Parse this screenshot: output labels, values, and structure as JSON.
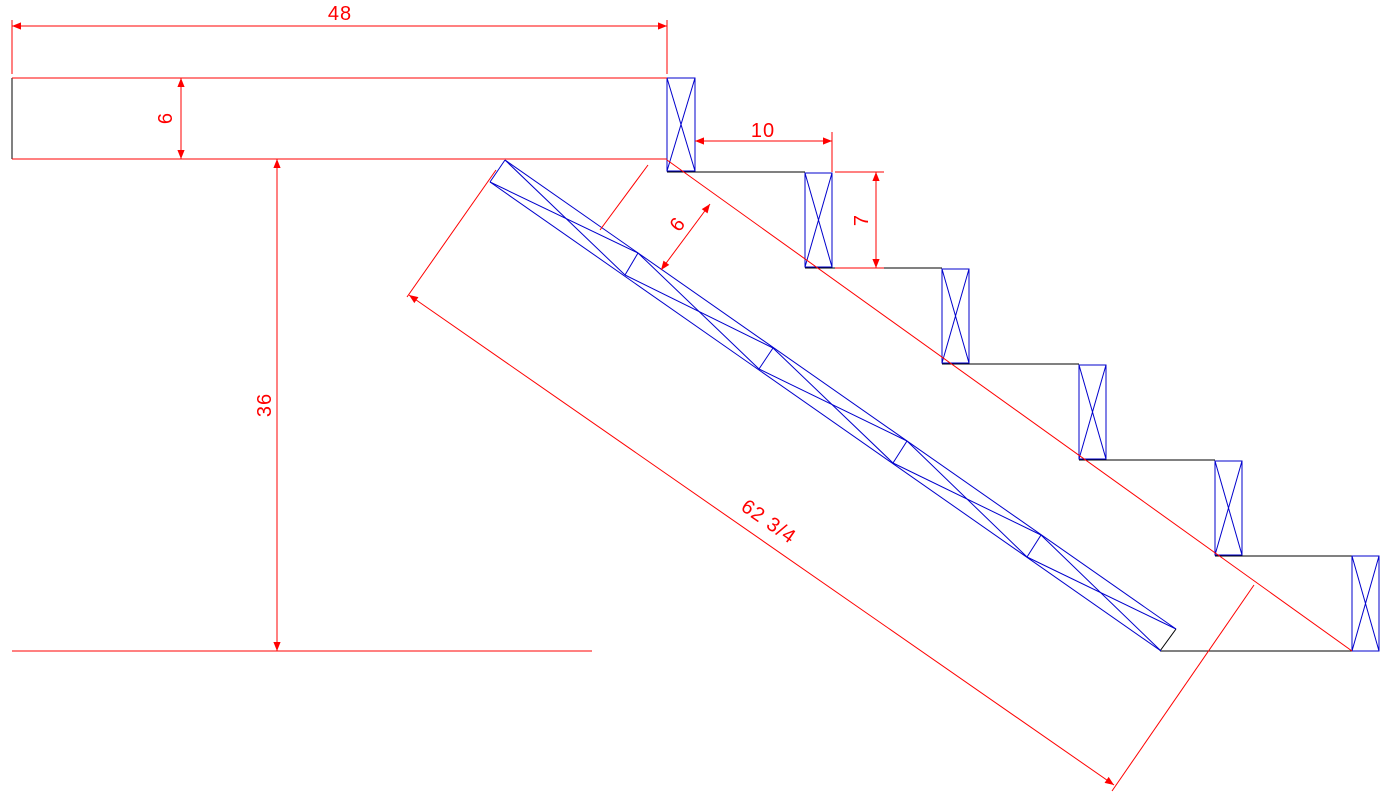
{
  "colors": {
    "background": "#ffffff",
    "object_line": "#000000",
    "dimension_line": "#ff0000",
    "framing_line": "#0000cc"
  },
  "dimensions": {
    "landing_width": "48",
    "landing_thickness": "6",
    "total_height": "36",
    "tread_depth": "10",
    "riser_height": "7",
    "stringer_depth": "6",
    "stringer_length": "62 3/4"
  },
  "stair": {
    "step_count": 5,
    "block_count": 6
  }
}
